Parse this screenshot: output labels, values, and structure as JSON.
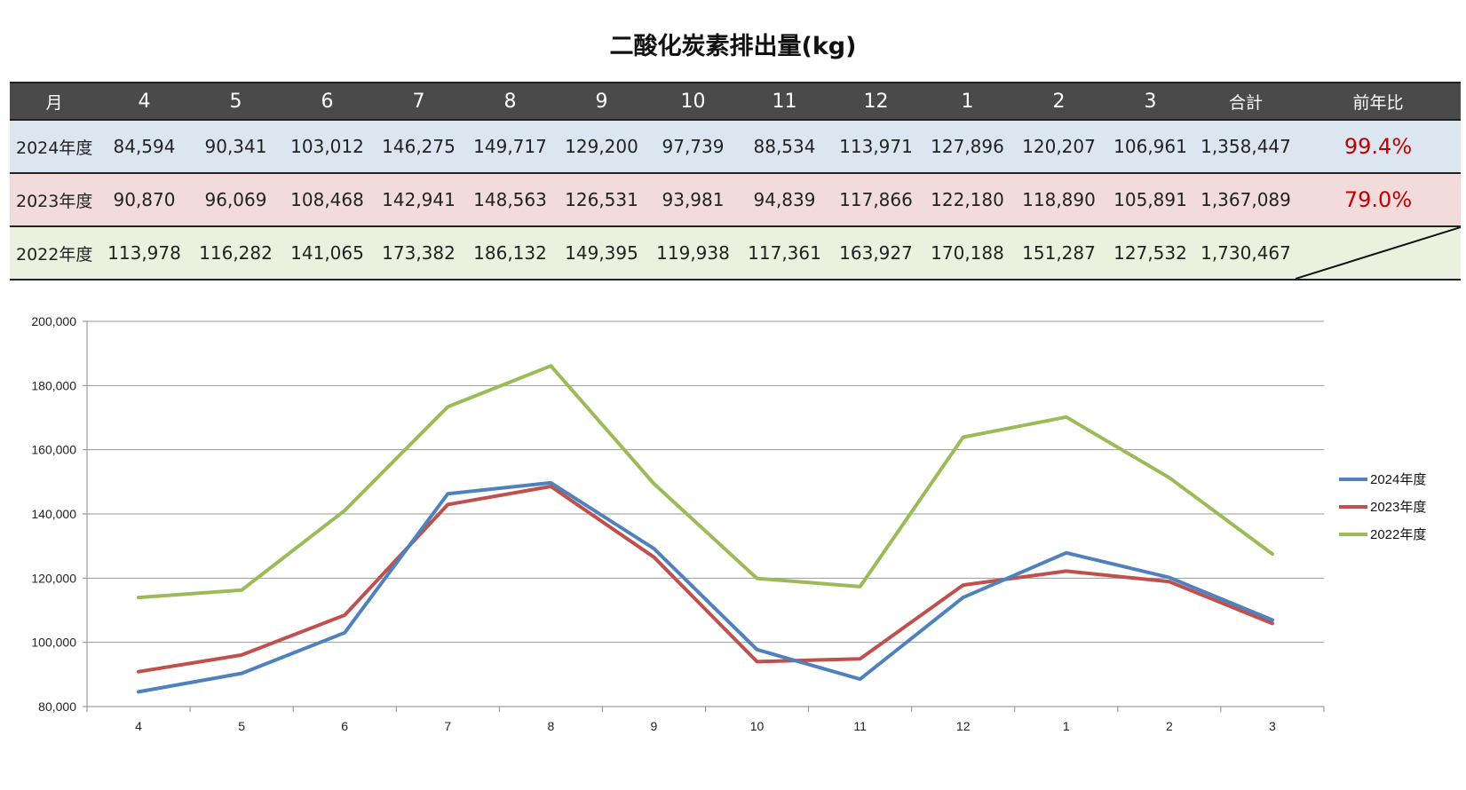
{
  "title": "二酸化炭素排出量(kg)",
  "table": {
    "header": [
      "月",
      "4",
      "5",
      "6",
      "7",
      "8",
      "9",
      "10",
      "11",
      "12",
      "1",
      "2",
      "3",
      "合計",
      "前年比"
    ],
    "rows": [
      {
        "label": "2024年度",
        "values": [
          "84,594",
          "90,341",
          "103,012",
          "146,275",
          "149,717",
          "129,200",
          "97,739",
          "88,534",
          "113,971",
          "127,896",
          "120,207",
          "106,961"
        ],
        "total": "1,358,447",
        "ratio": "99.4%"
      },
      {
        "label": "2023年度",
        "values": [
          "90,870",
          "96,069",
          "108,468",
          "142,941",
          "148,563",
          "126,531",
          "93,981",
          "94,839",
          "117,866",
          "122,180",
          "118,890",
          "105,891"
        ],
        "total": "1,367,089",
        "ratio": "79.0%"
      },
      {
        "label": "2022年度",
        "values": [
          "113,978",
          "116,282",
          "141,065",
          "173,382",
          "186,132",
          "149,395",
          "119,938",
          "117,361",
          "163,927",
          "170,188",
          "151,287",
          "127,532"
        ],
        "total": "1,730,467",
        "ratio": ""
      }
    ]
  },
  "chart_data": {
    "type": "line",
    "categories": [
      "4",
      "5",
      "6",
      "7",
      "8",
      "9",
      "10",
      "11",
      "12",
      "1",
      "2",
      "3"
    ],
    "series": [
      {
        "name": "2024年度",
        "color": "#4f81bd",
        "values": [
          84594,
          90341,
          103012,
          146275,
          149717,
          129200,
          97739,
          88534,
          113971,
          127896,
          120207,
          106961
        ]
      },
      {
        "name": "2023年度",
        "color": "#c0504d",
        "values": [
          90870,
          96069,
          108468,
          142941,
          148563,
          126531,
          93981,
          94839,
          117866,
          122180,
          118890,
          105891
        ]
      },
      {
        "name": "2022年度",
        "color": "#9bbb59",
        "values": [
          113978,
          116282,
          141065,
          173382,
          186132,
          149395,
          119938,
          117361,
          163927,
          170188,
          151287,
          127532
        ]
      }
    ],
    "yticks": [
      "80,000",
      "100,000",
      "120,000",
      "140,000",
      "160,000",
      "180,000",
      "200,000"
    ],
    "ylim": [
      80000,
      200000
    ],
    "ystep": 20000,
    "grid": true,
    "legend": "right"
  }
}
